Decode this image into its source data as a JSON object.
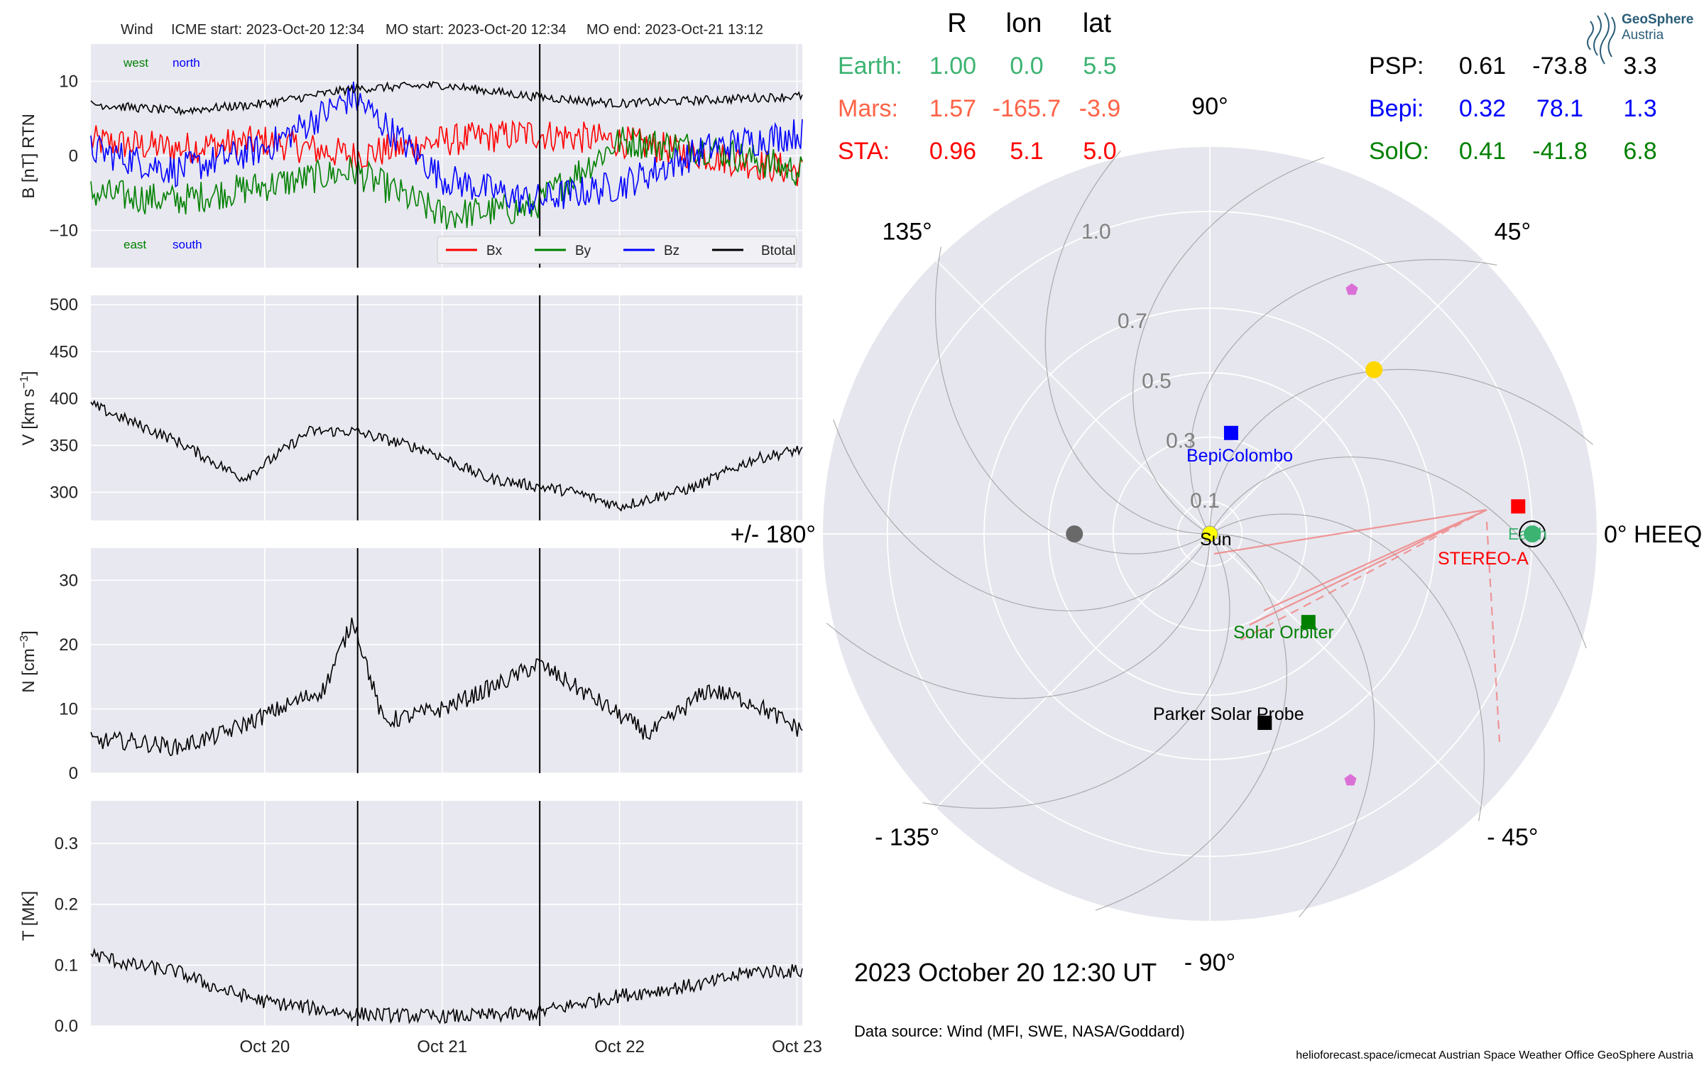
{
  "header": {
    "spacecraft": "Wind",
    "icme_start": "ICME start: 2023-Oct-20 12:34",
    "mo_start": "MO start: 2023-Oct-20 12:34",
    "mo_end": "MO end: 2023-Oct-21 13:12"
  },
  "colors": {
    "panel_bg": "#e8e8f0",
    "bx": "#ff0000",
    "by": "#008000",
    "bz": "#0000ff",
    "btotal": "#000000",
    "earth": "#3cb371",
    "mars": "#ff6347",
    "sta": "#ff0000",
    "psp": "#000000",
    "bepi": "#0000ff",
    "solo": "#008000",
    "sun": "#ffff00",
    "venus": "#ffd700",
    "mercury": "#696969",
    "l_points": "#da70d6"
  },
  "panel_labels": {
    "b_ylabel": "B [nT] RTN",
    "v_ylabel_main": "V [km s",
    "v_ylabel_sup": "−1",
    "v_ylabel_end": "]",
    "n_ylabel_main": "N [cm",
    "n_ylabel_sup": "−3",
    "n_ylabel_end": "]",
    "t_ylabel": "T [MK]",
    "west": "west",
    "north": "north",
    "east": "east",
    "south": "south"
  },
  "chart_data": [
    {
      "type": "line",
      "title": "Wind ICME start: 2023-Oct-20 12:34 MO start: 2023-Oct-20 12:34 MO end: 2023-Oct-21 13:12",
      "ylabel": "B [nT] RTN",
      "x_range_days": [
        "2023-10-19 00:00",
        "2023-10-23 00:00"
      ],
      "xlim_days_since_oct19": [
        0.02,
        4.03
      ],
      "ylim": [
        -15,
        15
      ],
      "yticks": [
        10,
        0,
        -10
      ],
      "ytick_labels": [
        "10",
        "0",
        "−10"
      ],
      "grid": true,
      "legend_placement": "lower right",
      "boundaries": [
        "2023-10-20 12:34",
        "2023-10-21 13:12"
      ],
      "series": [
        {
          "name": "Bx",
          "color": "#ff0000",
          "x": [
            "2023-10-19 00:00",
            "2023-10-19 12:00",
            "2023-10-20 00:00",
            "2023-10-20 12:00",
            "2023-10-21 00:00",
            "2023-10-21 12:00",
            "2023-10-22 00:00",
            "2023-10-22 12:00",
            "2023-10-23 00:00"
          ],
          "values": [
            2,
            1,
            2,
            0,
            2,
            3,
            2,
            0,
            -2
          ]
        },
        {
          "name": "By",
          "color": "#008000",
          "x": [
            "2023-10-19 00:00",
            "2023-10-19 12:00",
            "2023-10-20 00:00",
            "2023-10-20 12:00",
            "2023-10-21 00:00",
            "2023-10-21 12:00",
            "2023-10-22 00:00",
            "2023-10-22 12:00",
            "2023-10-23 00:00"
          ],
          "values": [
            -5,
            -6,
            -4,
            -2,
            -8,
            -7,
            2,
            1,
            -2
          ]
        },
        {
          "name": "Bz",
          "color": "#0000ff",
          "x": [
            "2023-10-19 00:00",
            "2023-10-19 12:00",
            "2023-10-20 00:00",
            "2023-10-20 12:00",
            "2023-10-21 00:00",
            "2023-10-21 12:00",
            "2023-10-22 00:00",
            "2023-10-22 12:00",
            "2023-10-23 00:00"
          ],
          "values": [
            1,
            -2,
            1,
            8,
            -3,
            -6,
            -4,
            1,
            3
          ]
        },
        {
          "name": "Btotal",
          "color": "#000000",
          "x": [
            "2023-10-19 00:00",
            "2023-10-19 12:00",
            "2023-10-20 00:00",
            "2023-10-20 12:00",
            "2023-10-21 00:00",
            "2023-10-21 12:00",
            "2023-10-22 00:00",
            "2023-10-22 12:00",
            "2023-10-23 00:00"
          ],
          "values": [
            7,
            6,
            7,
            9,
            9.5,
            8,
            7,
            7.5,
            8
          ]
        }
      ]
    },
    {
      "type": "line",
      "ylabel": "V [km s−1]",
      "ylim": [
        270,
        510
      ],
      "yticks": [
        500,
        450,
        400,
        350,
        300
      ],
      "ytick_labels": [
        "500",
        "450",
        "400",
        "350",
        "300"
      ],
      "grid": true,
      "series": [
        {
          "name": "",
          "color": "#000000",
          "x": [
            "2023-10-19 00:00",
            "2023-10-19 03:00",
            "2023-10-19 12:00",
            "2023-10-19 21:00",
            "2023-10-20 00:00",
            "2023-10-20 06:00",
            "2023-10-20 12:00",
            "2023-10-20 22:00",
            "2023-10-21 06:00",
            "2023-10-21 18:00",
            "2023-10-22 00:00",
            "2023-10-22 10:00",
            "2023-10-22 18:00",
            "2023-10-23 00:00"
          ],
          "values": [
            395,
            385,
            355,
            315,
            330,
            365,
            365,
            345,
            315,
            300,
            285,
            305,
            335,
            345
          ]
        }
      ]
    },
    {
      "type": "line",
      "ylabel": "N [cm−3]",
      "ylim": [
        0,
        35
      ],
      "yticks": [
        30,
        20,
        10,
        0
      ],
      "ytick_labels": [
        "30",
        "20",
        "10",
        "0"
      ],
      "grid": true,
      "series": [
        {
          "name": "",
          "color": "#000000",
          "x": [
            "2023-10-19 00:00",
            "2023-10-19 06:00",
            "2023-10-19 12:00",
            "2023-10-19 18:00",
            "2023-10-20 00:00",
            "2023-10-20 08:00",
            "2023-10-20 12:00",
            "2023-10-20 16:00",
            "2023-10-21 00:00",
            "2023-10-21 08:00",
            "2023-10-21 13:00",
            "2023-10-21 20:00",
            "2023-10-22 04:00",
            "2023-10-22 12:00",
            "2023-10-22 18:00",
            "2023-10-23 00:00"
          ],
          "values": [
            5,
            5,
            4,
            6,
            9,
            13,
            24,
            8,
            10,
            14,
            17,
            12,
            6,
            13,
            11,
            7
          ]
        }
      ]
    },
    {
      "type": "line",
      "ylabel": "T [MK]",
      "ylim": [
        0,
        0.37
      ],
      "yticks": [
        0.3,
        0.2,
        0.1,
        0.0
      ],
      "ytick_labels": [
        "0.3",
        "0.2",
        "0.1",
        "0.0"
      ],
      "xtick_labels": [
        "Oct 20",
        "Oct 21",
        "Oct 22",
        "Oct 23"
      ],
      "grid": true,
      "series": [
        {
          "name": "",
          "color": "#000000",
          "x": [
            "2023-10-19 00:00",
            "2023-10-19 06:00",
            "2023-10-19 12:00",
            "2023-10-19 18:00",
            "2023-10-20 00:00",
            "2023-10-20 12:00",
            "2023-10-21 00:00",
            "2023-10-21 12:00",
            "2023-10-22 00:00",
            "2023-10-22 12:00",
            "2023-10-22 18:00",
            "2023-10-23 00:00"
          ],
          "values": [
            0.12,
            0.1,
            0.09,
            0.06,
            0.04,
            0.02,
            0.015,
            0.02,
            0.05,
            0.07,
            0.09,
            0.09
          ]
        }
      ]
    },
    {
      "type": "scatter",
      "subtype": "polar",
      "title": "2023 October 20  12:30 UT",
      "angle_ticks": [
        "0° HEEQ",
        "45°",
        "90°",
        "135°",
        "+/- 180°",
        "- 135°",
        "- 90°",
        "- 45°"
      ],
      "radius_ticks": [
        "0.1",
        "0.3",
        "0.5",
        "0.7",
        "1.0"
      ],
      "grid": true,
      "objects": [
        {
          "name": "Sun",
          "r": 0.0,
          "lon": 0.0,
          "color": "#ffff00"
        },
        {
          "name": "Earth",
          "r": 1.0,
          "lon": 0.0,
          "color": "#3cb371"
        },
        {
          "name": "STEREO-A",
          "r": 0.96,
          "lon": 5.1,
          "color": "#ff0000"
        },
        {
          "name": "BepiColombo",
          "r": 0.32,
          "lon": 78.1,
          "color": "#0000ff"
        },
        {
          "name": "Solar Orbiter",
          "r": 0.41,
          "lon": -41.8,
          "color": "#008000"
        },
        {
          "name": "Parker Solar Probe",
          "r": 0.61,
          "lon": -73.8,
          "color": "#000000"
        },
        {
          "name": "",
          "r": 0.72,
          "lon": 45.0,
          "color": "#ffd700"
        },
        {
          "name": "",
          "r": 0.42,
          "lon": 180.0,
          "color": "#696969"
        }
      ]
    }
  ],
  "positions_table": {
    "headers": [
      "R",
      "lon",
      "lat"
    ],
    "left": [
      {
        "name": "Earth:",
        "r": "1.00",
        "lon": "0.0",
        "lat": "5.5",
        "color": "#3cb371"
      },
      {
        "name": "Mars:",
        "r": "1.57",
        "lon": "-165.7",
        "lat": "-3.9",
        "color": "#ff6347"
      },
      {
        "name": "STA:",
        "r": "0.96",
        "lon": "5.1",
        "lat": "5.0",
        "color": "#ff0000"
      }
    ],
    "right": [
      {
        "name": "PSP:",
        "r": "0.61",
        "lon": "-73.8",
        "lat": "3.3",
        "color": "#000000"
      },
      {
        "name": "Bepi:",
        "r": "0.32",
        "lon": "78.1",
        "lat": "1.3",
        "color": "#0000ff"
      },
      {
        "name": "SolO:",
        "r": "0.41",
        "lon": "-41.8",
        "lat": "6.8",
        "color": "#008000"
      }
    ]
  },
  "logo": {
    "line1": "GeoSphere",
    "line2": "Austria"
  },
  "footer": {
    "date": "2023 October 20  12:30 UT",
    "data_source": "Data source: Wind (MFI, SWE, NASA/Goddard)",
    "credits": "helioforecast.space/icmecat   Austrian Space Weather Office   GeoSphere Austria"
  }
}
